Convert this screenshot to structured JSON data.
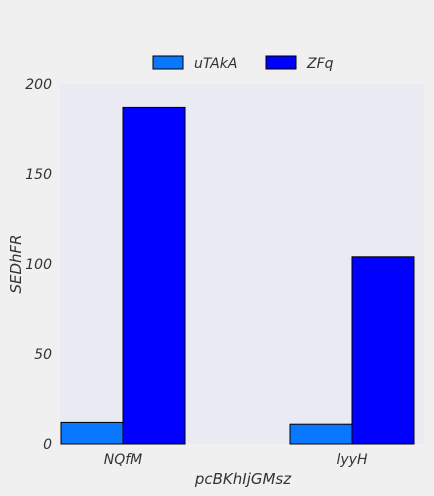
{
  "chart_data": {
    "type": "bar",
    "categories": [
      "NQfM",
      "lyyH"
    ],
    "series": [
      {
        "name": "uTAkA",
        "values": [
          12,
          11
        ],
        "color": "#0a77ff"
      },
      {
        "name": "ZFq",
        "values": [
          187,
          104
        ],
        "color": "#0000ff"
      }
    ],
    "xlabel": "pcBKhIjGMsz",
    "ylabel": "SEDhFR",
    "ylim": [
      0,
      200
    ],
    "yticks": [
      0,
      50,
      100,
      150,
      200
    ],
    "grid": false,
    "legend_position": "top-center",
    "plot_background": "#eaeaf2",
    "bar_edge_color": "#000000"
  }
}
